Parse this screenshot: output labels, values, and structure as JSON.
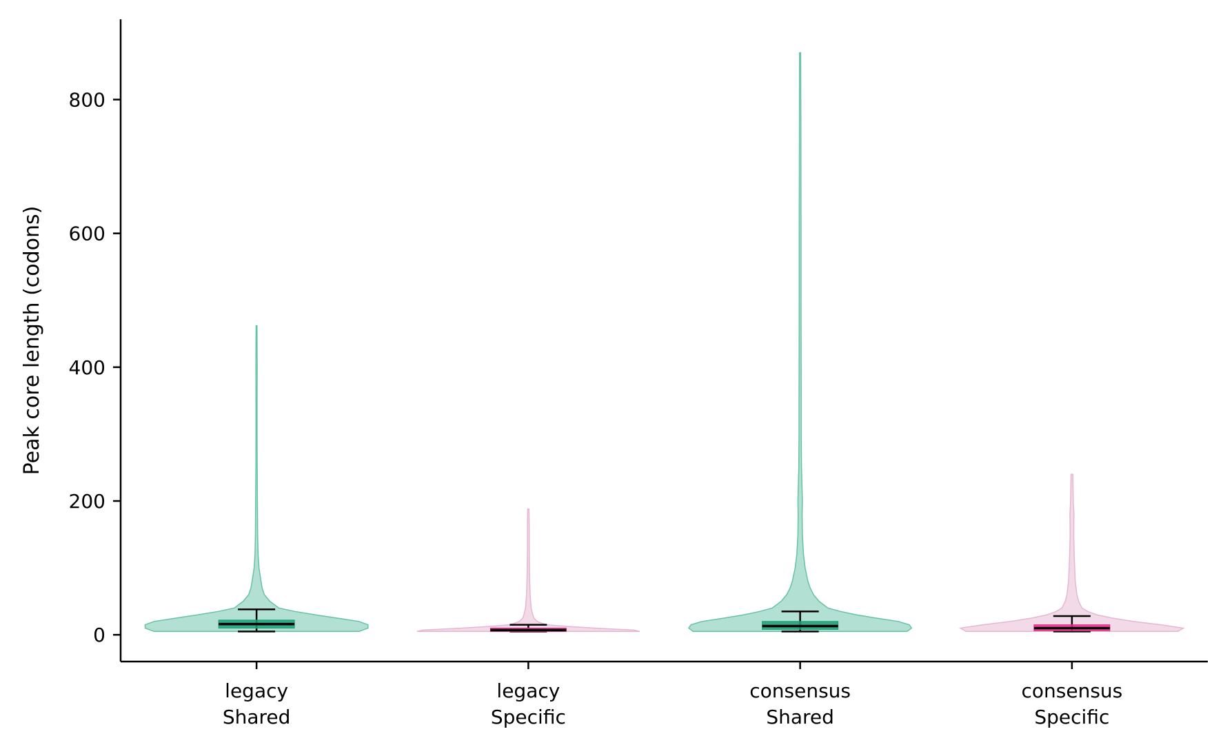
{
  "chart_data": {
    "type": "violin",
    "title": "",
    "xlabel": "",
    "ylabel": "Peak core length (codons)",
    "ylim": [
      -40,
      920
    ],
    "yticks": [
      0,
      200,
      400,
      600,
      800
    ],
    "grid": false,
    "legend": "none",
    "categories": [
      {
        "line1": "legacy",
        "line2": "Shared",
        "color": "#66c2a5",
        "box_color": "#1b9e77"
      },
      {
        "line1": "legacy",
        "line2": "Specific",
        "color": "#e7b6d1",
        "box_color": "#e7298a"
      },
      {
        "line1": "consensus",
        "line2": "Shared",
        "color": "#66c2a5",
        "box_color": "#1b9e77"
      },
      {
        "line1": "consensus",
        "line2": "Specific",
        "color": "#e7b6d1",
        "box_color": "#e7298a"
      }
    ],
    "stats": [
      {
        "min": 5,
        "q1": 10,
        "median": 16,
        "q3": 22,
        "whisker_low": 5,
        "whisker_high": 38,
        "max": 462
      },
      {
        "min": 5,
        "q1": 5,
        "median": 7,
        "q3": 10,
        "whisker_low": 5,
        "whisker_high": 15,
        "max": 188
      },
      {
        "min": 5,
        "q1": 8,
        "median": 13,
        "q3": 20,
        "whisker_low": 5,
        "whisker_high": 35,
        "max": 870
      },
      {
        "min": 5,
        "q1": 6,
        "median": 10,
        "q3": 15,
        "whisker_low": 5,
        "whisker_high": 28,
        "max": 240
      }
    ],
    "density_profiles": [
      [
        [
          5,
          0.92
        ],
        [
          10,
          1.0
        ],
        [
          15,
          1.0
        ],
        [
          20,
          0.92
        ],
        [
          25,
          0.72
        ],
        [
          30,
          0.52
        ],
        [
          35,
          0.34
        ],
        [
          40,
          0.2
        ],
        [
          50,
          0.12
        ],
        [
          60,
          0.07
        ],
        [
          70,
          0.05
        ],
        [
          80,
          0.04
        ],
        [
          100,
          0.022
        ],
        [
          120,
          0.014
        ],
        [
          150,
          0.01
        ],
        [
          200,
          0.008
        ],
        [
          250,
          0.006
        ],
        [
          300,
          0.005
        ],
        [
          350,
          0.005
        ],
        [
          400,
          0.006
        ],
        [
          430,
          0.005
        ],
        [
          462,
          0.004
        ]
      ],
      [
        [
          5,
          1.0
        ],
        [
          7,
          0.95
        ],
        [
          10,
          0.6
        ],
        [
          12,
          0.4
        ],
        [
          15,
          0.16
        ],
        [
          20,
          0.08
        ],
        [
          25,
          0.05
        ],
        [
          30,
          0.04
        ],
        [
          40,
          0.025
        ],
        [
          60,
          0.016
        ],
        [
          80,
          0.012
        ],
        [
          100,
          0.01
        ],
        [
          130,
          0.008
        ],
        [
          160,
          0.008
        ],
        [
          188,
          0.006
        ]
      ],
      [
        [
          5,
          0.96
        ],
        [
          10,
          1.0
        ],
        [
          15,
          0.98
        ],
        [
          20,
          0.88
        ],
        [
          25,
          0.68
        ],
        [
          30,
          0.5
        ],
        [
          35,
          0.36
        ],
        [
          40,
          0.25
        ],
        [
          50,
          0.17
        ],
        [
          60,
          0.12
        ],
        [
          70,
          0.09
        ],
        [
          80,
          0.07
        ],
        [
          100,
          0.045
        ],
        [
          120,
          0.03
        ],
        [
          150,
          0.02
        ],
        [
          180,
          0.018
        ],
        [
          200,
          0.02
        ],
        [
          250,
          0.012
        ],
        [
          300,
          0.01
        ],
        [
          350,
          0.01
        ],
        [
          400,
          0.009
        ],
        [
          500,
          0.008
        ],
        [
          600,
          0.008
        ],
        [
          700,
          0.007
        ],
        [
          800,
          0.006
        ],
        [
          870,
          0.005
        ]
      ],
      [
        [
          5,
          0.95
        ],
        [
          10,
          1.0
        ],
        [
          15,
          0.8
        ],
        [
          20,
          0.55
        ],
        [
          25,
          0.36
        ],
        [
          30,
          0.22
        ],
        [
          35,
          0.14
        ],
        [
          40,
          0.09
        ],
        [
          50,
          0.06
        ],
        [
          60,
          0.045
        ],
        [
          80,
          0.03
        ],
        [
          100,
          0.025
        ],
        [
          120,
          0.02
        ],
        [
          150,
          0.016
        ],
        [
          180,
          0.018
        ],
        [
          200,
          0.012
        ],
        [
          240,
          0.008
        ]
      ]
    ]
  }
}
